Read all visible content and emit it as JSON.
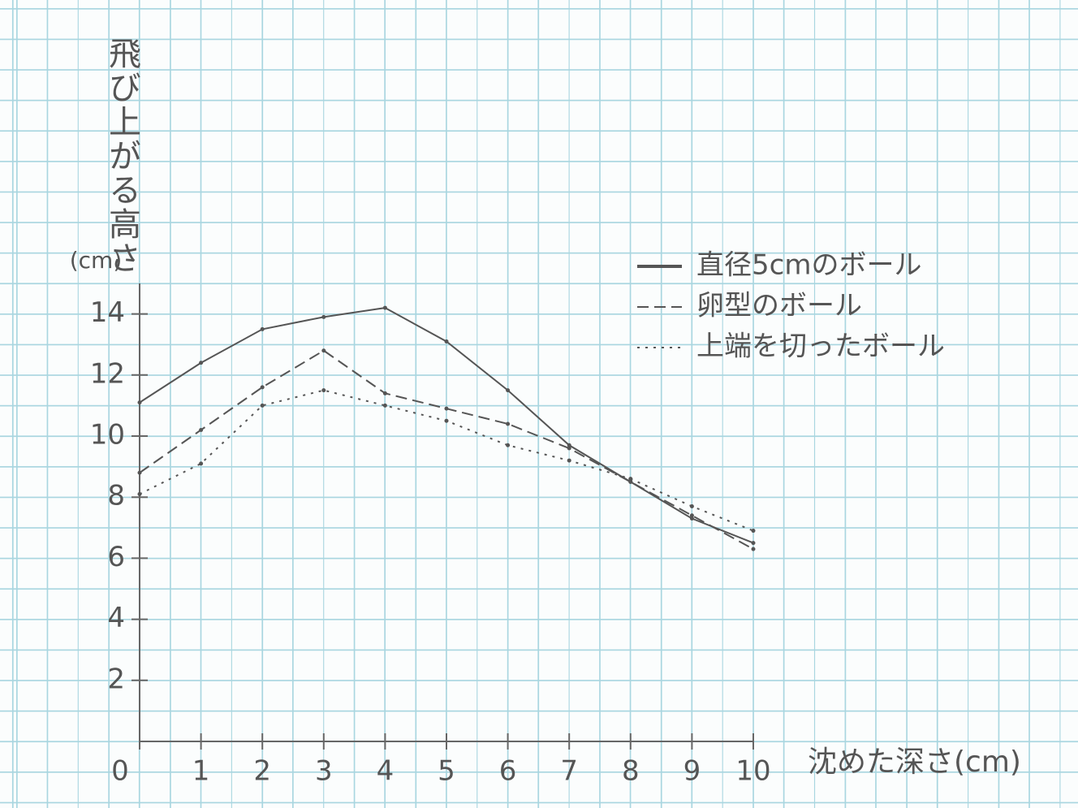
{
  "chart_data": {
    "type": "line",
    "y_label": "飛び上がる高さ",
    "y_unit": "(cm)",
    "x_label": "沈めた深さ(cm)",
    "x": [
      0,
      1,
      2,
      3,
      4,
      5,
      6,
      7,
      8,
      9,
      10
    ],
    "series": [
      {
        "name": "直径5cmのボール",
        "color": "#555555",
        "dash": "solid",
        "values": [
          11.1,
          12.4,
          13.5,
          13.9,
          14.2,
          13.1,
          11.5,
          9.7,
          8.5,
          7.3,
          6.5
        ]
      },
      {
        "name": "卵型のボール",
        "color": "#555555",
        "dash": "dashed",
        "values": [
          8.8,
          10.2,
          11.6,
          12.8,
          11.4,
          10.9,
          10.4,
          9.6,
          8.5,
          7.4,
          6.3
        ]
      },
      {
        "name": "上端を切ったボール",
        "color": "#555555",
        "dash": "dotted",
        "values": [
          8.1,
          9.1,
          11.0,
          11.5,
          11.0,
          10.5,
          9.7,
          9.2,
          8.6,
          7.7,
          6.9
        ]
      }
    ],
    "xlim": [
      0,
      10
    ],
    "ylim": [
      0,
      15
    ],
    "xticks": [
      0,
      1,
      2,
      3,
      4,
      5,
      6,
      7,
      8,
      9,
      10
    ],
    "yticks": [
      2,
      4,
      6,
      8,
      10,
      12,
      14
    ]
  }
}
